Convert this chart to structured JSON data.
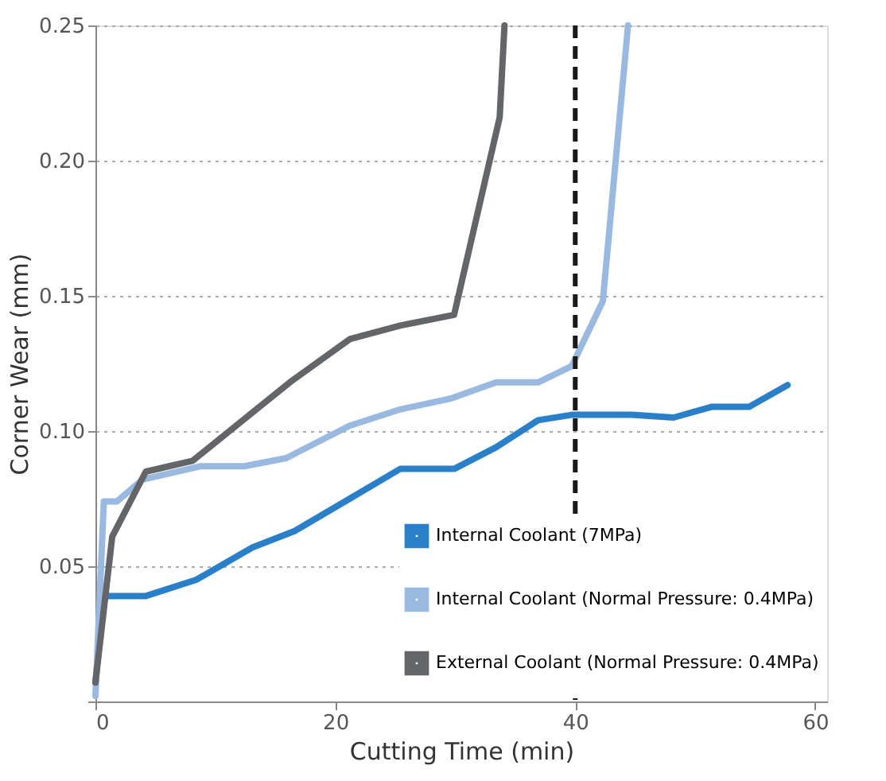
{
  "chart_data": {
    "type": "line",
    "xlabel": "Cutting Time (min)",
    "ylabel": "Corner Wear (mm)",
    "xlim": [
      0,
      61
    ],
    "xticks": [
      0,
      20,
      40,
      60
    ],
    "ylim": [
      0,
      0.25
    ],
    "yticks": [
      {
        "value": 0,
        "label": null
      },
      {
        "value": 0.05,
        "label": "0.05"
      },
      {
        "value": 0.1,
        "label": "0.10"
      },
      {
        "value": 0.15,
        "label": "0.15"
      },
      {
        "value": 0.2,
        "label": "0.20"
      },
      {
        "value": 0.25,
        "label": "0.25"
      }
    ],
    "grid": "y",
    "legend": "bottom right",
    "line_style": "solid",
    "marker": "none",
    "ref_lines": [
      {
        "axis": "x",
        "value": 40,
        "color": "#1a1a1a",
        "line_style": "dashed"
      }
    ],
    "series": [
      {
        "name": "Internal Coolant (7MPa)",
        "color": "#2a7fc9",
        "x": [
          0,
          0.7,
          4.2,
          8.4,
          13.1,
          16.6,
          21.2,
          25.4,
          29.9,
          33.4,
          36.9,
          39.7,
          44.7,
          48.2,
          51.4,
          54.5,
          57.7
        ],
        "values": [
          0.007,
          0.039,
          0.039,
          0.045,
          0.057,
          0.063,
          0.075,
          0.086,
          0.086,
          0.094,
          0.104,
          0.106,
          0.106,
          0.105,
          0.109,
          0.109,
          0.117
        ]
      },
      {
        "name": "Internal Coolant (Normal Pressure: 0.4MPa)",
        "color": "#9ab9e0",
        "x": [
          0,
          0.7,
          1.8,
          3.9,
          8.8,
          12.4,
          15.9,
          21.2,
          25.4,
          29.6,
          33.4,
          36.9,
          39.7,
          42.3,
          44.4
        ],
        "values": [
          0.002,
          0.074,
          0.074,
          0.082,
          0.087,
          0.087,
          0.09,
          0.102,
          0.108,
          0.112,
          0.118,
          0.118,
          0.124,
          0.148,
          0.25
        ]
      },
      {
        "name": "External Coolant (Normal Pressure: 0.4MPa)",
        "color": "#636569",
        "x": [
          0,
          1.4,
          4.2,
          8.1,
          16.2,
          21.2,
          25.4,
          29.9,
          33.7,
          34.1
        ],
        "values": [
          0.007,
          0.061,
          0.085,
          0.089,
          0.118,
          0.134,
          0.139,
          0.143,
          0.216,
          0.25
        ]
      }
    ]
  }
}
